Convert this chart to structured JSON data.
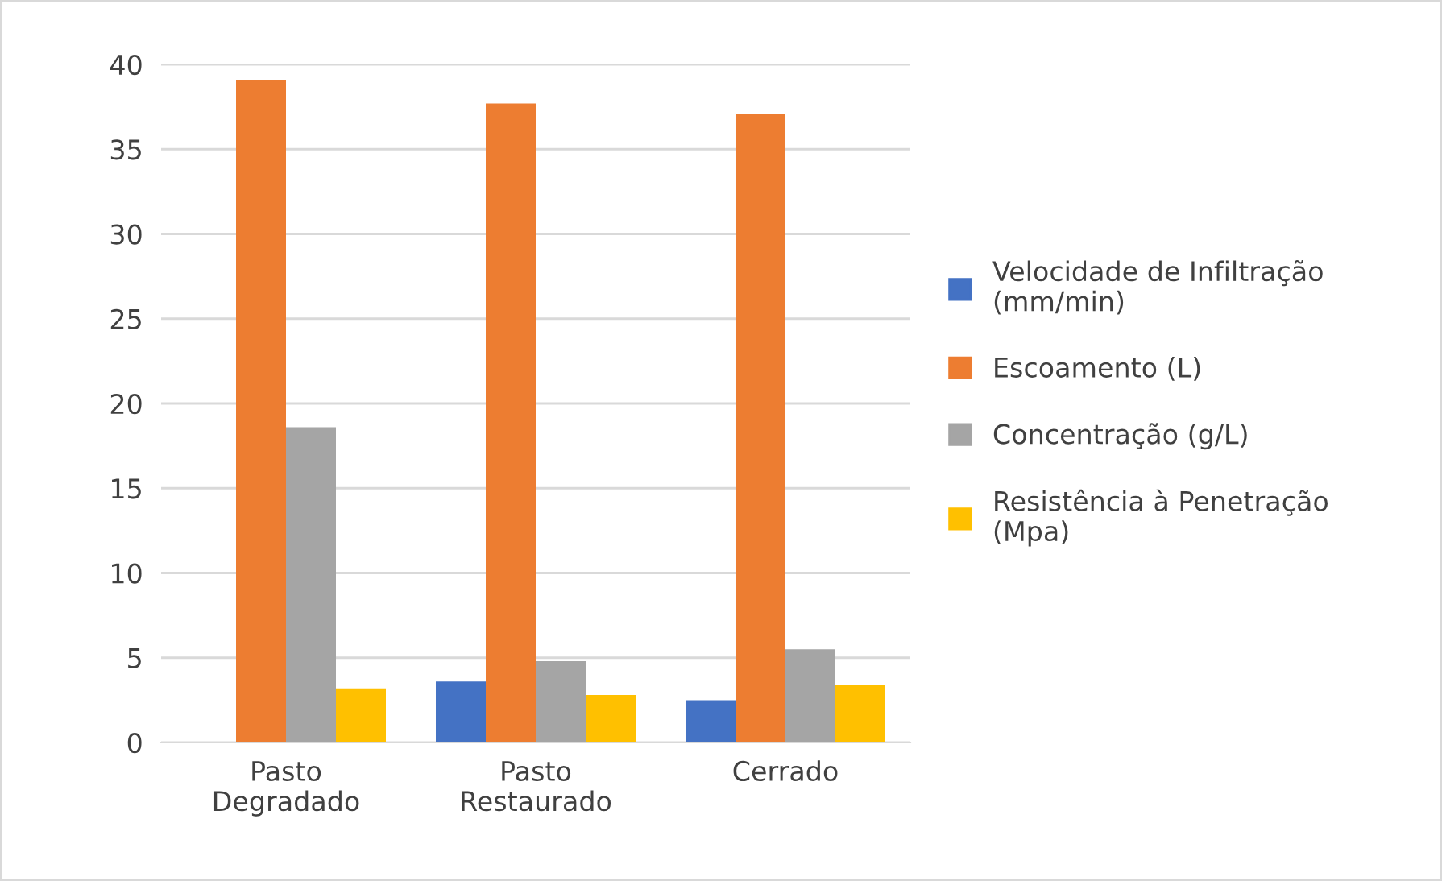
{
  "chart_data": {
    "type": "bar",
    "categories": [
      "Pasto\nDegradado",
      "Pasto\nRestaurado",
      "Cerrado"
    ],
    "series": [
      {
        "name": "Velocidade de Infiltração\n(mm/min)",
        "color": "#4472c4",
        "values": [
          null,
          3.6,
          2.5
        ]
      },
      {
        "name": "Escoamento (L)",
        "color": "#ed7d31",
        "values": [
          39.1,
          37.7,
          37.1
        ]
      },
      {
        "name": "Concentração (g/L)",
        "color": "#a5a5a5",
        "values": [
          18.6,
          4.8,
          5.5
        ]
      },
      {
        "name": "Resistência à Penetração\n(Mpa)",
        "color": "#ffc000",
        "values": [
          3.2,
          2.8,
          3.4
        ]
      }
    ],
    "ylim": [
      0,
      40
    ],
    "yticks": [
      0,
      5,
      10,
      15,
      20,
      25,
      30,
      35,
      40
    ],
    "grid": "y",
    "legend": "right"
  }
}
